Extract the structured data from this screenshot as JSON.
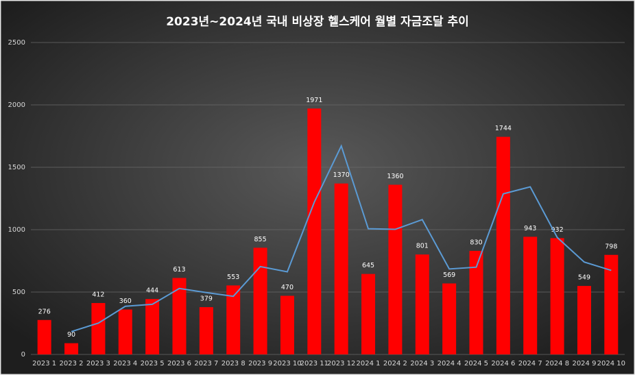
{
  "chart_data": {
    "type": "bar-line",
    "title": "2023년~2024년 국내 비상장 헬스케어 월별 자금조달 추이",
    "categories": [
      "2023 1",
      "2023 2",
      "2023 3",
      "2023 4",
      "2023 5",
      "2023 6",
      "2023 7",
      "2023 8",
      "2023 9",
      "2023 10",
      "2023 11",
      "2023 12",
      "2024 1",
      "2024 2",
      "2024 3",
      "2024 4",
      "2024 5",
      "2024 6",
      "2024 7",
      "2024 8",
      "2024 9",
      "2024 10"
    ],
    "series": [
      {
        "type": "bar",
        "color": "#ff0000",
        "values": [
          276,
          90,
          412,
          360,
          444,
          613,
          379,
          553,
          855,
          470,
          1971,
          1370,
          645,
          1360,
          801,
          569,
          830,
          1744,
          943,
          932,
          549,
          798
        ]
      },
      {
        "type": "line",
        "color": "#5b9bd5",
        "values": [
          null,
          183,
          251,
          386,
          402,
          528.5,
          496,
          466,
          704,
          662.5,
          1220.5,
          1670.5,
          1007.5,
          1002.5,
          1080.5,
          685,
          699.5,
          1287,
          1343.5,
          937.5,
          740.5,
          673.5
        ]
      }
    ],
    "ylim": [
      0,
      2500
    ],
    "yticks": [
      0,
      500,
      1000,
      1500,
      2000,
      2500
    ],
    "grid": true
  }
}
